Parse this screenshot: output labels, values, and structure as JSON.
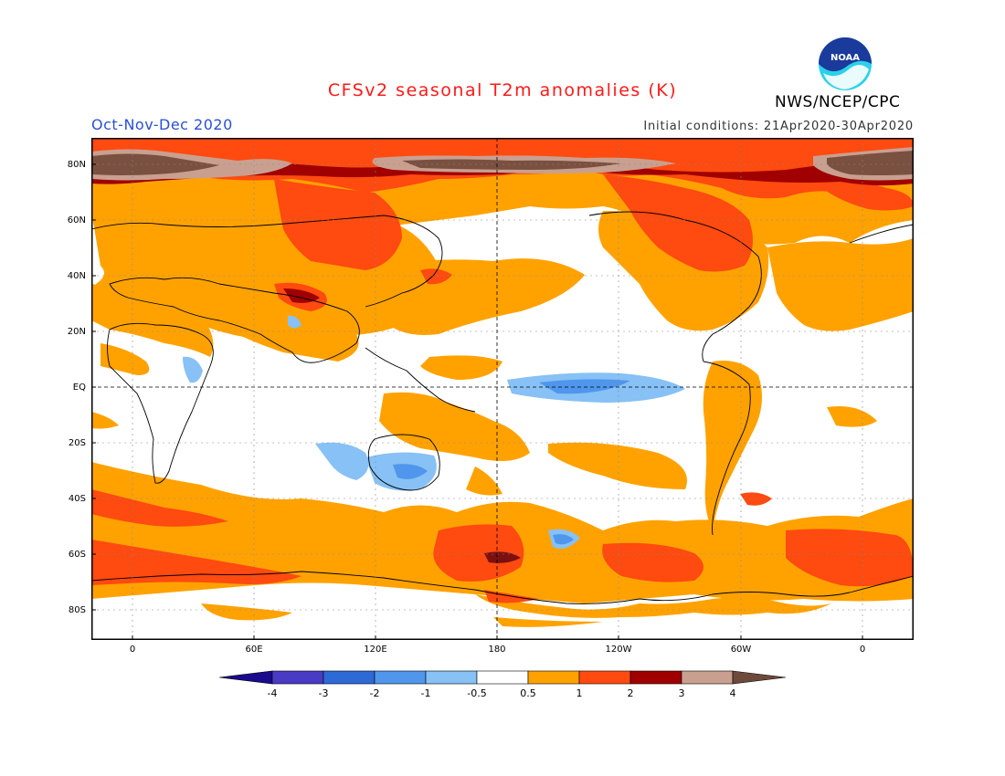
{
  "title": "CFSv2 seasonal T2m anomalies (K)",
  "season": "Oct-Nov-Dec 2020",
  "initial_conditions": "Initial conditions: 21Apr2020-30Apr2020",
  "agency": "NWS/NCEP/CPC",
  "logo_text": "NOAA",
  "map": {
    "lat_labels": [
      "80N",
      "60N",
      "40N",
      "20N",
      "EQ",
      "20S",
      "40S",
      "60S",
      "80S"
    ],
    "lon_labels": [
      "0",
      "60E",
      "120E",
      "180",
      "120W",
      "60W",
      "0"
    ]
  },
  "colorbar": {
    "tick_labels": [
      "-4",
      "-3",
      "-2",
      "-1",
      "-0.5",
      "0.5",
      "1",
      "2",
      "3",
      "4"
    ],
    "colors": [
      "#1a0a8c",
      "#4a3bc4",
      "#2e6ad6",
      "#4f96ec",
      "#87c1f5",
      "#ffffff",
      "#ffa200",
      "#ff4a10",
      "#a00000",
      "#c9a090",
      "#6e4a3a"
    ]
  },
  "palette": {
    "t2_3": "#a00000",
    "t1_2": "#ff4a10",
    "t05_1": "#ffa200",
    "t3_4": "#c9a090",
    "gt4": "#7a5040",
    "m05_1": "#87c1f5",
    "m1_2": "#4f96ec"
  }
}
